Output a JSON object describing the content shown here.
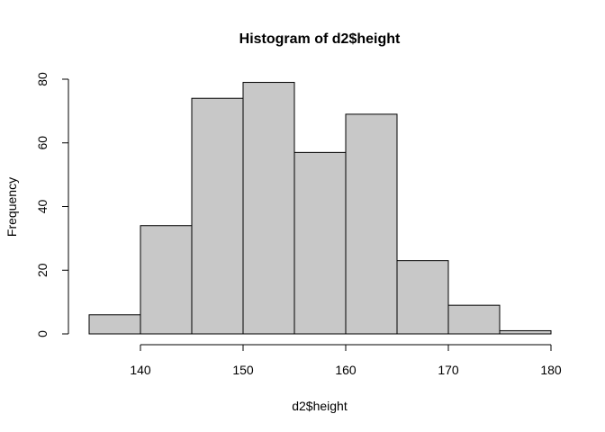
{
  "chart_data": {
    "type": "bar",
    "title": "Histogram of d2$height",
    "xlabel": "d2$height",
    "ylabel": "Frequency",
    "bins": [
      {
        "start": 135,
        "end": 140,
        "count": 6
      },
      {
        "start": 140,
        "end": 145,
        "count": 34
      },
      {
        "start": 145,
        "end": 150,
        "count": 74
      },
      {
        "start": 150,
        "end": 155,
        "count": 79
      },
      {
        "start": 155,
        "end": 160,
        "count": 57
      },
      {
        "start": 160,
        "end": 165,
        "count": 69
      },
      {
        "start": 165,
        "end": 170,
        "count": 23
      },
      {
        "start": 170,
        "end": 175,
        "count": 9
      },
      {
        "start": 175,
        "end": 180,
        "count": 1
      }
    ],
    "xticks": [
      140,
      150,
      160,
      170,
      180
    ],
    "yticks": [
      0,
      20,
      40,
      60,
      80
    ],
    "xlim": [
      135,
      180
    ],
    "ylim": [
      0,
      80
    ],
    "grid": false,
    "colors": {
      "bar_fill": "#c8c8c8",
      "bar_stroke": "#000000"
    }
  }
}
